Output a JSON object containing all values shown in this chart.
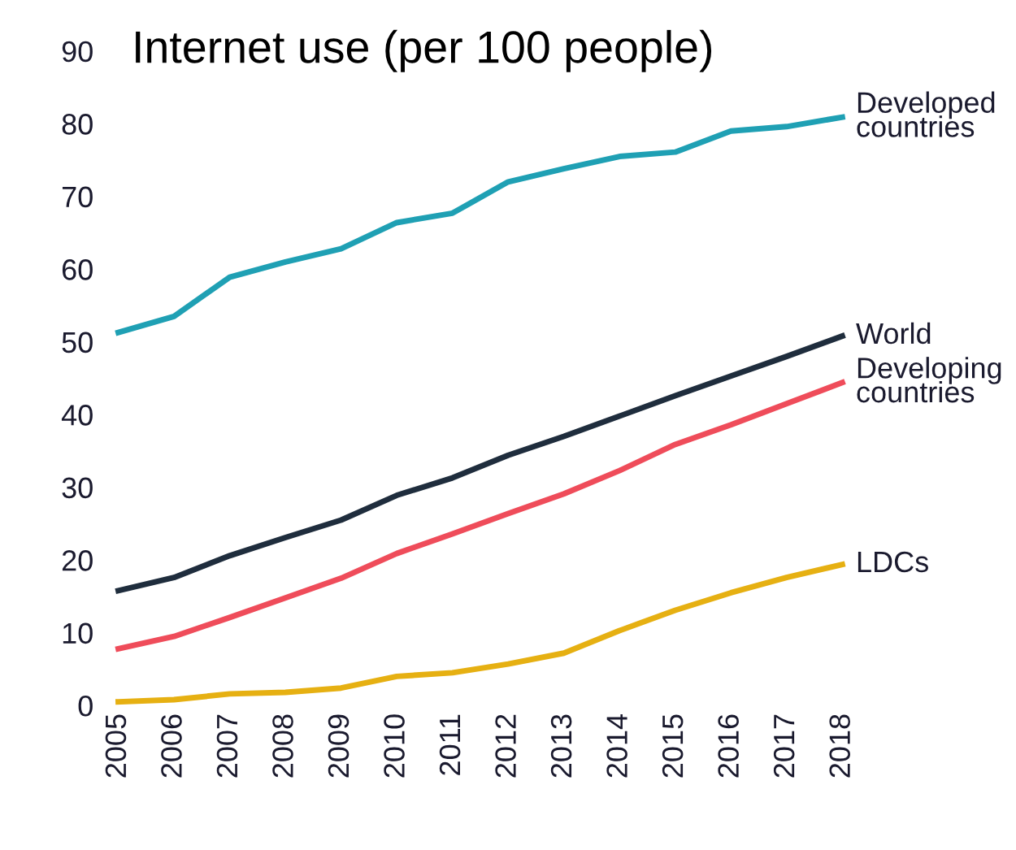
{
  "chart_data": {
    "type": "line",
    "title": "Internet use (per 100 people)",
    "categories": [
      "2005",
      "2006",
      "2007",
      "2008",
      "2009",
      "2010",
      "2011",
      "2012",
      "2013",
      "2014",
      "2015",
      "2016",
      "2017",
      "2018"
    ],
    "series": [
      {
        "name": "Developed\ncountries",
        "color": "#1fa0b4",
        "values": [
          51.3,
          53.5,
          58.9,
          61,
          62.8,
          66.4,
          67.7,
          72,
          73.8,
          75.5,
          76.1,
          79,
          79.6,
          80.9
        ]
      },
      {
        "name": "World",
        "color": "#1f2d3d",
        "values": [
          15.8,
          17.6,
          20.6,
          23.1,
          25.5,
          28.9,
          31.3,
          34.4,
          37,
          39.8,
          42.6,
          45.3,
          48,
          50.8
        ]
      },
      {
        "name": "Developing\ncountries",
        "color": "#ef4c5a",
        "values": [
          7.8,
          9.5,
          12.1,
          14.8,
          17.5,
          20.9,
          23.6,
          26.4,
          29.1,
          32.3,
          35.9,
          38.6,
          41.5,
          44.4
        ]
      },
      {
        "name": "LDCs",
        "color": "#e6b012",
        "values": [
          0.5,
          0.8,
          1.6,
          1.8,
          2.4,
          4,
          4.5,
          5.7,
          7.2,
          10.3,
          13.1,
          15.5,
          17.6,
          19.4
        ]
      }
    ],
    "ylim": [
      0,
      90
    ],
    "yticks": [
      0,
      10,
      20,
      30,
      40,
      50,
      60,
      70,
      80,
      90
    ],
    "grid": false,
    "legend": false,
    "marker": "none",
    "line_style": "solid"
  }
}
